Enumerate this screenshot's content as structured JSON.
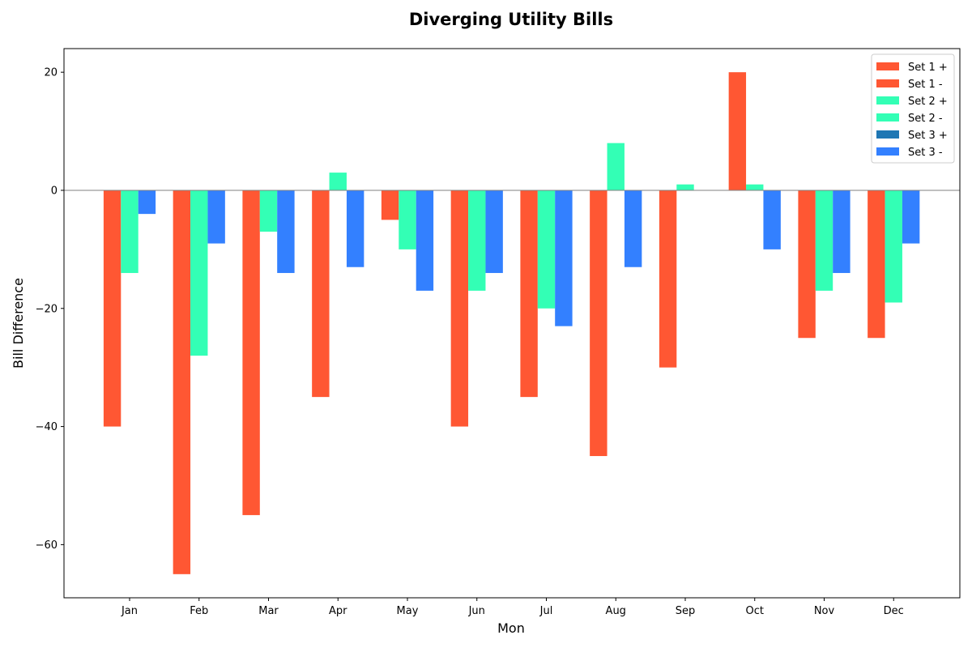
{
  "chart_data": {
    "type": "bar",
    "title": "Diverging Utility Bills",
    "xlabel": "Mon",
    "ylabel": "Bill Difference",
    "categories": [
      "Jan",
      "Feb",
      "Mar",
      "Apr",
      "May",
      "Jun",
      "Jul",
      "Aug",
      "Sep",
      "Oct",
      "Nov",
      "Dec"
    ],
    "ylim": [
      -69,
      24
    ],
    "yticks": [
      20,
      0,
      -20,
      -40,
      -60
    ],
    "ytick_labels": [
      "20",
      "0",
      "−20",
      "−40",
      "−60"
    ],
    "grid": false,
    "legend_position": "top-right",
    "legend": [
      {
        "label": "Set 1 +",
        "color": "#FF5733"
      },
      {
        "label": "Set 1 -",
        "color": "#FF5733"
      },
      {
        "label": "Set 2 +",
        "color": "#33FFB5"
      },
      {
        "label": "Set 2 -",
        "color": "#33FFB5"
      },
      {
        "label": "Set 3 +",
        "color": "#1F77B4"
      },
      {
        "label": "Set 3 -",
        "color": "#3380FF"
      }
    ],
    "series": [
      {
        "color": "#FF5733",
        "values": [
          -40,
          -65,
          -55,
          -35,
          -5,
          -40,
          -35,
          -45,
          -30,
          20,
          -25,
          -25
        ]
      },
      {
        "color": "#33FFB5",
        "values": [
          -14,
          -28,
          -7,
          3,
          -10,
          -17,
          -20,
          8,
          1,
          1,
          -17,
          -19
        ]
      },
      {
        "color": "#3380FF",
        "values": [
          -4,
          -9,
          -14,
          -13,
          -17,
          -14,
          -23,
          -13,
          0,
          -10,
          -14,
          -9
        ]
      }
    ]
  }
}
